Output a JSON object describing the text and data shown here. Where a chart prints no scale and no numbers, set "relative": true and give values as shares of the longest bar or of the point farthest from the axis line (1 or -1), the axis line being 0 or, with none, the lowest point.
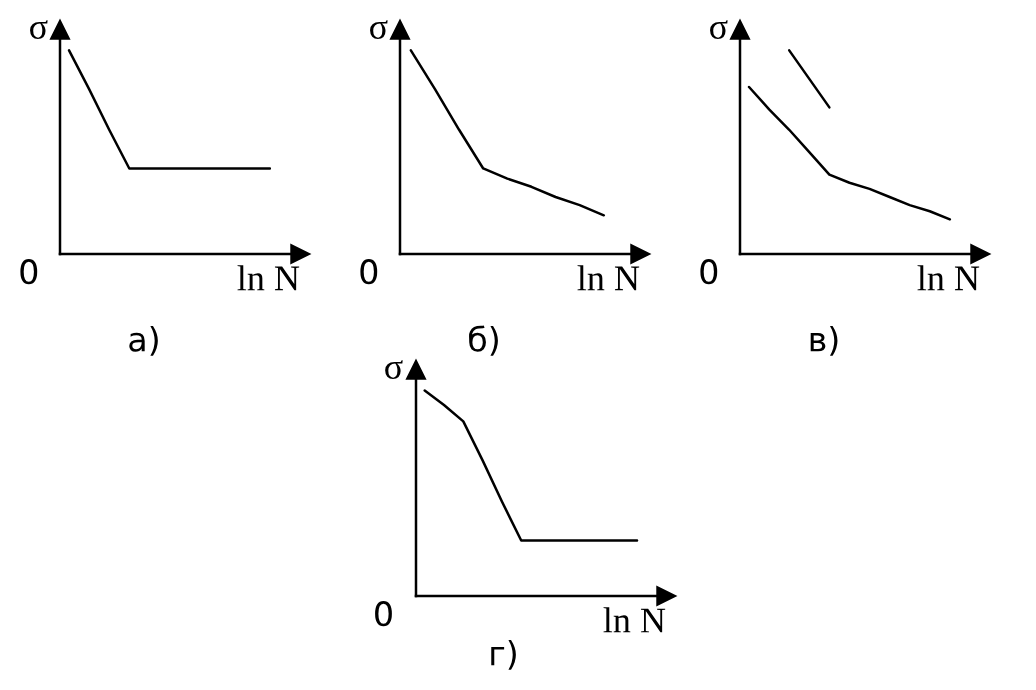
{
  "chart_data": [
    {
      "type": "line",
      "title": "а)",
      "xlabel": "ln N",
      "ylabel": "σ",
      "annotations": [
        "0"
      ],
      "relative": true,
      "categories": [
        null,
        null,
        null,
        null,
        null,
        null,
        null,
        null,
        null,
        null,
        null
      ],
      "series": [
        {
          "color": "#000000",
          "values": [
            1.0,
            0.81,
            0.61,
            0.42,
            0.42,
            0.42,
            0.42,
            0.42,
            0.42,
            0.42,
            0.42
          ]
        }
      ]
    },
    {
      "type": "line",
      "title": "б)",
      "xlabel": "ln N",
      "ylabel": "σ",
      "annotations": [
        "0"
      ],
      "relative": true,
      "categories": [
        null,
        null,
        null,
        null,
        null,
        null,
        null,
        null,
        null
      ],
      "series": [
        {
          "color": "#000000",
          "values": [
            1.0,
            0.81,
            0.61,
            0.42,
            0.37,
            0.33,
            0.28,
            0.24,
            0.19
          ]
        }
      ]
    },
    {
      "type": "line",
      "title": "в)",
      "xlabel": "ln N",
      "ylabel": "σ",
      "annotations": [
        "0"
      ],
      "relative": true,
      "categories": [
        null,
        null,
        null,
        null,
        null,
        null,
        null,
        null,
        null,
        null,
        null
      ],
      "series": [
        {
          "color": "#000000",
          "values": [
            null,
            null,
            1.0,
            0.86,
            0.72,
            null,
            null,
            null,
            null,
            null,
            null
          ]
        },
        {
          "color": "#000000",
          "values": [
            0.82,
            0.71,
            0.61,
            0.5,
            0.39,
            0.35,
            0.32,
            0.28,
            0.24,
            0.21,
            0.17
          ]
        }
      ]
    },
    {
      "type": "line",
      "title": "г)",
      "xlabel": "ln N",
      "ylabel": "σ",
      "annotations": [
        "0"
      ],
      "relative": true,
      "categories": [
        null,
        null,
        null,
        null,
        null,
        null,
        null,
        null,
        null,
        null,
        null,
        null
      ],
      "series": [
        {
          "color": "#000000",
          "values": [
            1.0,
            0.93,
            0.85,
            0.66,
            0.46,
            0.27,
            0.27,
            0.27,
            0.27,
            0.27,
            0.27,
            0.27
          ]
        }
      ]
    }
  ]
}
